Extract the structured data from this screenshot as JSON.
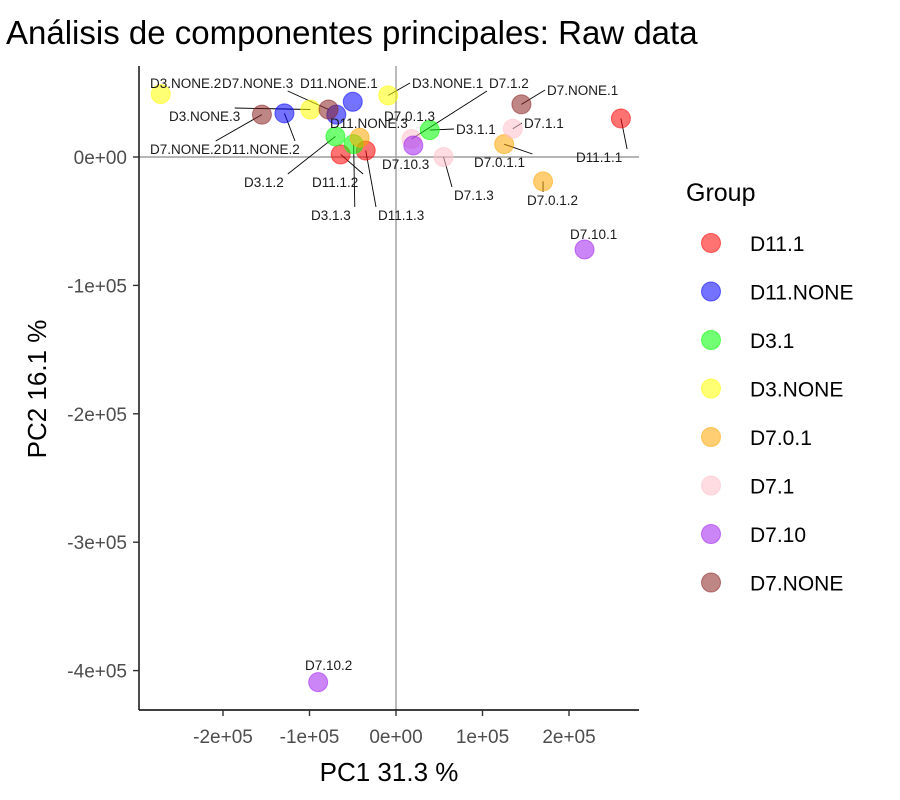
{
  "chart_data": {
    "type": "scatter",
    "title": "Análisis de componentes principales:  Raw data",
    "xlabel": "PC1 31.3 %",
    "ylabel": "PC2 16.1 %",
    "xlim": [
      -300000,
      285000
    ],
    "ylim": [
      -430000,
      70000
    ],
    "x_ticks": [
      -200000,
      -100000,
      0,
      100000,
      200000
    ],
    "x_tick_labels": [
      "-2e+05",
      "-1e+05",
      "0e+00",
      "1e+05",
      "2e+05"
    ],
    "y_ticks": [
      0,
      -100000,
      -200000,
      -300000,
      -400000
    ],
    "y_tick_labels": [
      "0e+00",
      "-1e+05",
      "-2e+05",
      "-3e+05",
      "-4e+05"
    ],
    "reference_lines": {
      "x": 0,
      "y": 0
    },
    "grid": false,
    "legend": {
      "title": "Group",
      "placement": "right",
      "items": [
        {
          "label": "D11.1",
          "color": "#FF0000"
        },
        {
          "label": "D11.NONE",
          "color": "#0000FF"
        },
        {
          "label": "D3.1",
          "color": "#00FF00"
        },
        {
          "label": "D3.NONE",
          "color": "#FFFF00"
        },
        {
          "label": "D7.0.1",
          "color": "#FFA500"
        },
        {
          "label": "D7.1",
          "color": "#FFC0CB"
        },
        {
          "label": "D7.10",
          "color": "#A020F0"
        },
        {
          "label": "D7.NONE",
          "color": "#8B2323"
        }
      ]
    },
    "points": [
      {
        "name": "D11.1.1",
        "group": "D11.1",
        "x": 260000,
        "y": 30000
      },
      {
        "name": "D11.1.2",
        "group": "D11.1",
        "x": -64000,
        "y": 2000
      },
      {
        "name": "D11.1.3",
        "group": "D11.1",
        "x": -35000,
        "y": 5000
      },
      {
        "name": "D11.NONE.1",
        "group": "D11.NONE",
        "x": -50000,
        "y": 43000
      },
      {
        "name": "D11.NONE.2",
        "group": "D11.NONE",
        "x": -129000,
        "y": 34000
      },
      {
        "name": "D11.NONE.3",
        "group": "D11.NONE",
        "x": -69000,
        "y": 33000
      },
      {
        "name": "D3.1.1",
        "group": "D3.1",
        "x": 39000,
        "y": 21000
      },
      {
        "name": "D3.1.2",
        "group": "D3.1",
        "x": -70000,
        "y": 16000
      },
      {
        "name": "D3.1.3",
        "group": "D3.1",
        "x": -49000,
        "y": 10000
      },
      {
        "name": "D3.NONE.1",
        "group": "D3.NONE",
        "x": -9000,
        "y": 48000
      },
      {
        "name": "D3.NONE.2",
        "group": "D3.NONE",
        "x": -272000,
        "y": 49000
      },
      {
        "name": "D3.NONE.3",
        "group": "D3.NONE",
        "x": -99000,
        "y": 37000
      },
      {
        "name": "D7.0.1.1",
        "group": "D7.0.1",
        "x": 125000,
        "y": 10000
      },
      {
        "name": "D7.0.1.2",
        "group": "D7.0.1",
        "x": 170000,
        "y": -19000
      },
      {
        "name": "D7.0.1.3",
        "group": "D7.0.1",
        "x": -42000,
        "y": 15000
      },
      {
        "name": "D7.1.1",
        "group": "D7.1",
        "x": 135000,
        "y": 22000
      },
      {
        "name": "D7.1.2",
        "group": "D7.1",
        "x": 18000,
        "y": 14000
      },
      {
        "name": "D7.1.3",
        "group": "D7.1",
        "x": 55000,
        "y": 0
      },
      {
        "name": "D7.10.1",
        "group": "D7.10",
        "x": 218000,
        "y": -72000
      },
      {
        "name": "D7.10.2",
        "group": "D7.10",
        "x": -90000,
        "y": -409000
      },
      {
        "name": "D7.10.3",
        "group": "D7.10",
        "x": 20000,
        "y": 9000
      },
      {
        "name": "D7.NONE.1",
        "group": "D7.NONE",
        "x": 145000,
        "y": 41000
      },
      {
        "name": "D7.NONE.2",
        "group": "D7.NONE",
        "x": -155000,
        "y": 33000
      },
      {
        "name": "D7.NONE.3",
        "group": "D7.NONE",
        "x": -78000,
        "y": 37000
      }
    ]
  }
}
